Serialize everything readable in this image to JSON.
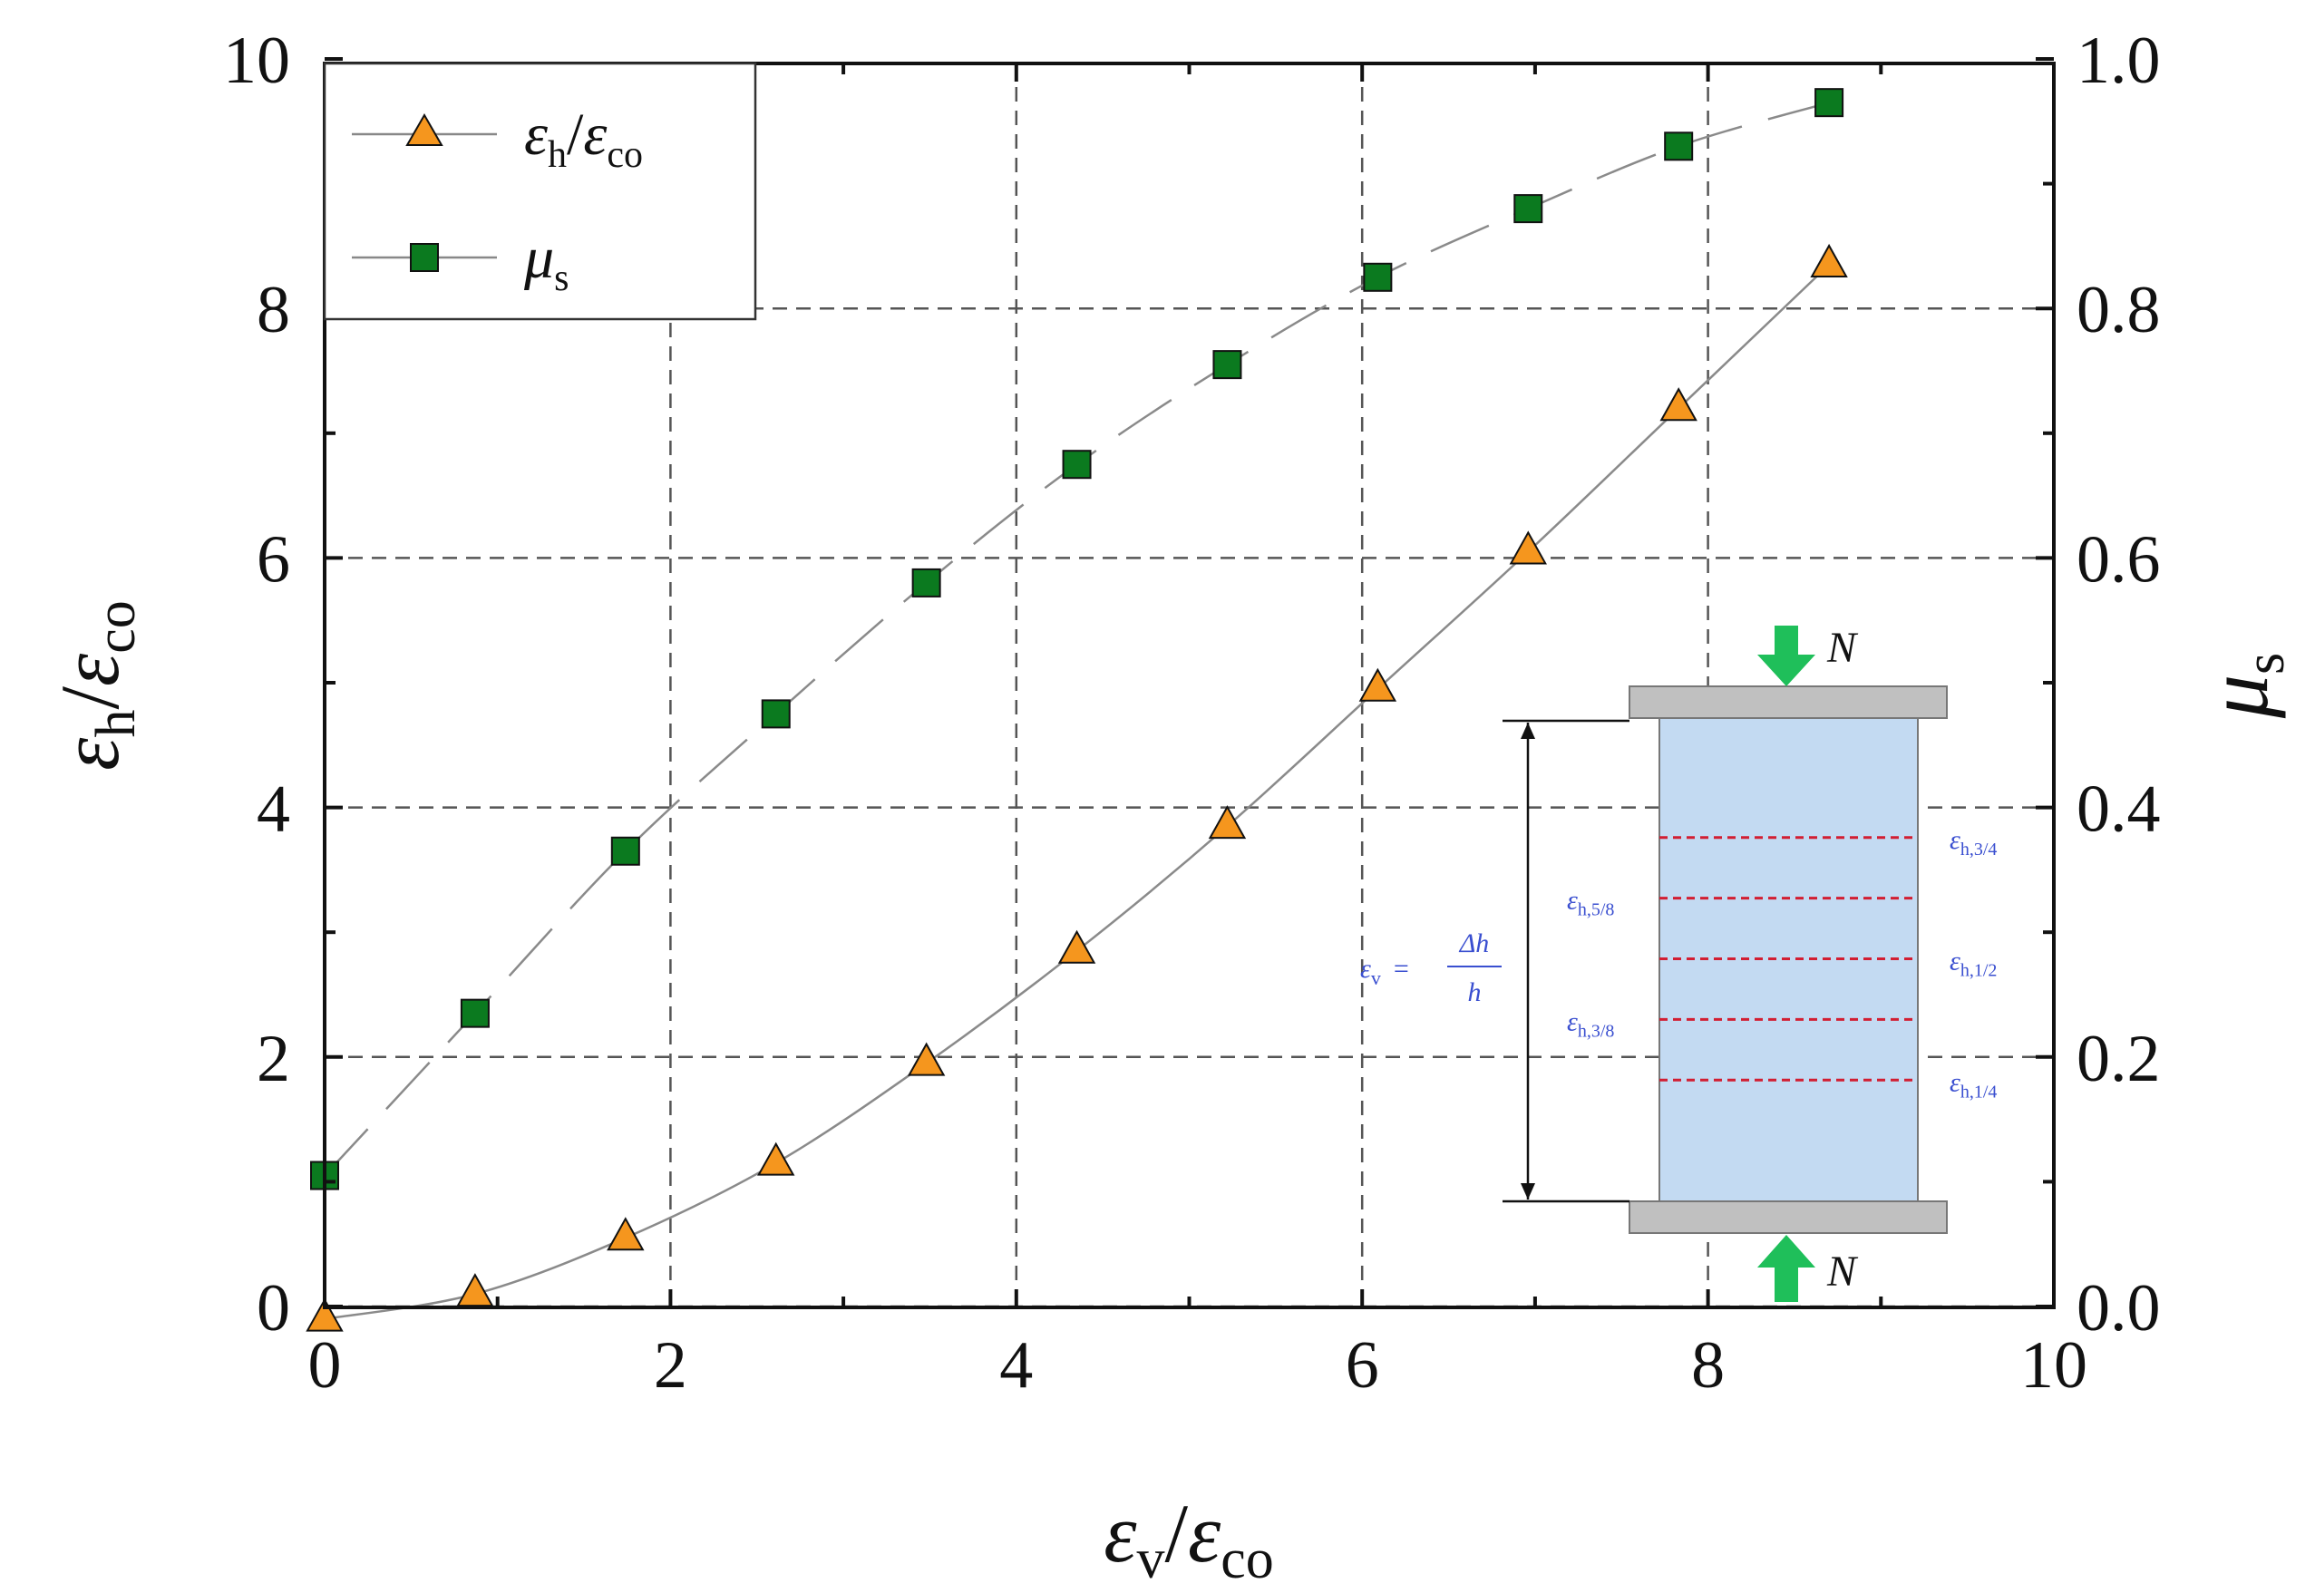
{
  "chart_data": {
    "type": "scatter",
    "title": "",
    "xlabel": {
      "main": "ε",
      "sub": "v",
      "sep": "/",
      "main2": "ε",
      "sub2": "co"
    },
    "ylabel": {
      "main": "ε",
      "sub": "h",
      "sep": "/",
      "main2": "ε",
      "sub2": "co"
    },
    "y2label": {
      "main": "μ",
      "sub": "s"
    },
    "xlim": [
      0,
      10
    ],
    "ylim": [
      0,
      10
    ],
    "y2lim": [
      0,
      1.0
    ],
    "x_ticks": [
      "0",
      "2",
      "4",
      "6",
      "8",
      "10"
    ],
    "y_ticks": [
      "0",
      "2",
      "4",
      "6",
      "8",
      "10"
    ],
    "y2_ticks": [
      "0.0",
      "0.2",
      "0.4",
      "0.6",
      "0.8",
      "1.0"
    ],
    "grid": true,
    "legend": {
      "position": "top-left",
      "entries": [
        {
          "main": "ε",
          "sub": "h",
          "sep": "/",
          "main2": "ε",
          "sub2": "co",
          "marker": "triangle"
        },
        {
          "main": "μ",
          "sub": "s",
          "marker": "square"
        }
      ]
    },
    "series": [
      {
        "name": "εh/εco",
        "axis": "left",
        "marker": "triangle",
        "color": "#f5961e",
        "line_style": "solid",
        "x": [
          0.0,
          0.87,
          1.74,
          2.61,
          3.48,
          4.35,
          5.22,
          6.09,
          6.96,
          7.83,
          8.7
        ],
        "values": [
          -0.1,
          0.1,
          0.55,
          1.15,
          1.95,
          2.85,
          3.85,
          4.95,
          6.05,
          7.2,
          8.35
        ]
      },
      {
        "name": "μs",
        "axis": "right",
        "marker": "square",
        "color": "#0b7a1f",
        "line_style": "dashed",
        "x": [
          0.0,
          0.87,
          1.74,
          2.61,
          3.48,
          4.35,
          5.22,
          6.09,
          6.96,
          7.83,
          8.7
        ],
        "values": [
          0.105,
          0.235,
          0.365,
          0.475,
          0.58,
          0.675,
          0.755,
          0.825,
          0.88,
          0.93,
          0.965
        ]
      }
    ],
    "inset": {
      "load_label": "N",
      "formula": {
        "lhs_main": "ε",
        "lhs_sub": "v",
        "eq": "=",
        "num": "Δh",
        "den": "h"
      },
      "strain_labels": [
        {
          "main": "ε",
          "sub": "h,3/4",
          "side": "right",
          "level": 0.75
        },
        {
          "main": "ε",
          "sub": "h,5/8",
          "side": "left",
          "level": 0.625
        },
        {
          "main": "ε",
          "sub": "h,1/2",
          "side": "right",
          "level": 0.5
        },
        {
          "main": "ε",
          "sub": "h,3/8",
          "side": "left",
          "level": 0.375
        },
        {
          "main": "ε",
          "sub": "h,1/4",
          "side": "right",
          "level": 0.25
        }
      ],
      "colors": {
        "specimen": "#c3daf2",
        "plate": "#c0c0c0",
        "arrow": "#1fbf5a",
        "strain_line": "#d21e32",
        "label": "#3a4fd0"
      }
    }
  }
}
